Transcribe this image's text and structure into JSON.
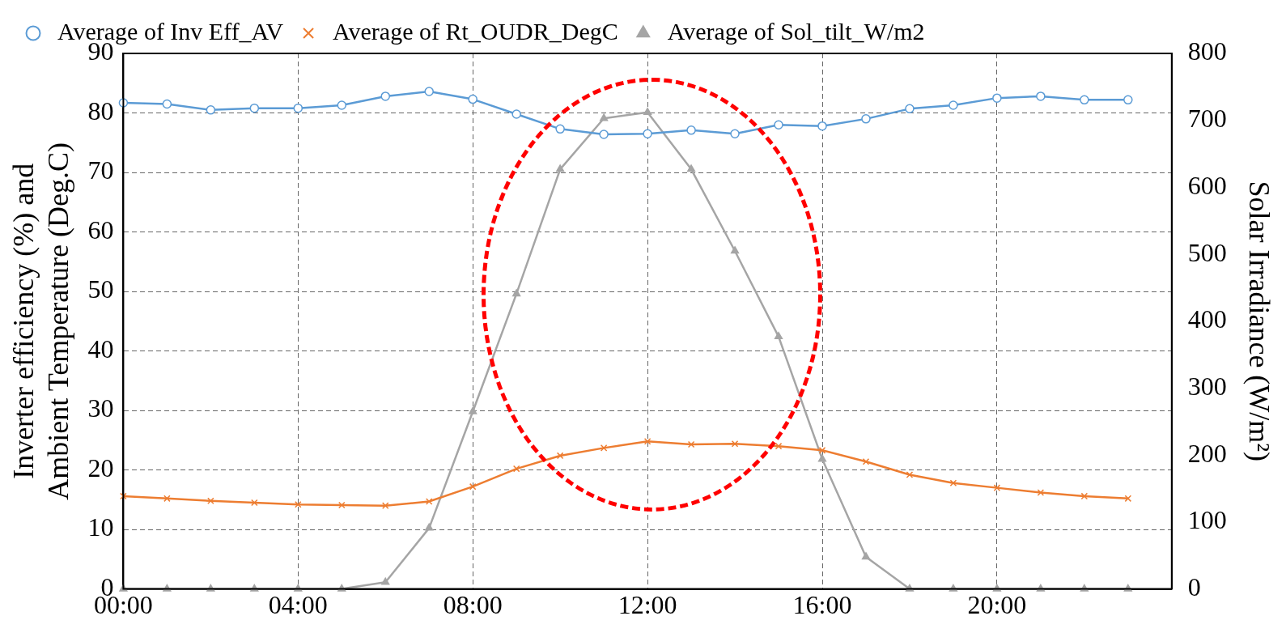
{
  "chart_data": {
    "type": "line",
    "ylabel": "Inverter efficiency (%) and\nAmbient Temperature (Deg.C)",
    "y2label": "Solar Irradiance (W/m²)",
    "x": [
      0,
      1,
      2,
      3,
      4,
      5,
      6,
      7,
      8,
      9,
      10,
      11,
      12,
      13,
      14,
      15,
      16,
      17,
      18,
      19,
      20,
      21,
      22,
      23
    ],
    "xlim": [
      0,
      24
    ],
    "xticks": [
      {
        "value": 0,
        "label": "00:00"
      },
      {
        "value": 4,
        "label": "04:00"
      },
      {
        "value": 8,
        "label": "08:00"
      },
      {
        "value": 12,
        "label": "12:00"
      },
      {
        "value": 16,
        "label": "16:00"
      },
      {
        "value": 20,
        "label": "20:00"
      }
    ],
    "ylim": [
      0,
      90
    ],
    "yticks": [
      0,
      10,
      20,
      30,
      40,
      50,
      60,
      70,
      80,
      90
    ],
    "y2lim": [
      0,
      800
    ],
    "y2ticks": [
      0,
      100,
      200,
      300,
      400,
      500,
      600,
      700,
      800
    ],
    "grid": true,
    "legend": "top",
    "series": [
      {
        "name": "Average of Inv Eff_AV",
        "color": "#5b9bd5",
        "marker": "circle",
        "values": [
          81.7,
          81.5,
          80.5,
          80.8,
          80.8,
          81.3,
          82.8,
          83.6,
          82.3,
          79.8,
          77.3,
          76.4,
          76.5,
          77.1,
          76.5,
          78,
          77.8,
          79,
          80.7,
          81.3,
          82.5,
          82.8,
          82.2,
          82.2
        ]
      },
      {
        "name": "Average of Rt_OUDR_DegC",
        "color": "#ed7d31",
        "marker": "cross",
        "values": [
          15.6,
          15.2,
          14.8,
          14.5,
          14.2,
          14.1,
          14.0,
          14.7,
          17.2,
          20.2,
          22.4,
          23.7,
          24.8,
          24.3,
          24.4,
          24.0,
          23.3,
          21.4,
          19.2,
          17.8,
          17.0,
          16.2,
          15.6,
          15.2
        ]
      },
      {
        "name": "Average of Sol_tilt_W/m2",
        "color": "#a5a5a5",
        "marker": "triangle",
        "axis": "y2",
        "values": [
          0,
          0,
          0,
          0,
          0,
          0,
          10,
          91,
          265,
          441,
          627,
          703,
          712,
          627,
          505,
          377,
          194,
          48,
          0,
          0,
          0,
          0,
          0,
          0
        ]
      }
    ]
  }
}
